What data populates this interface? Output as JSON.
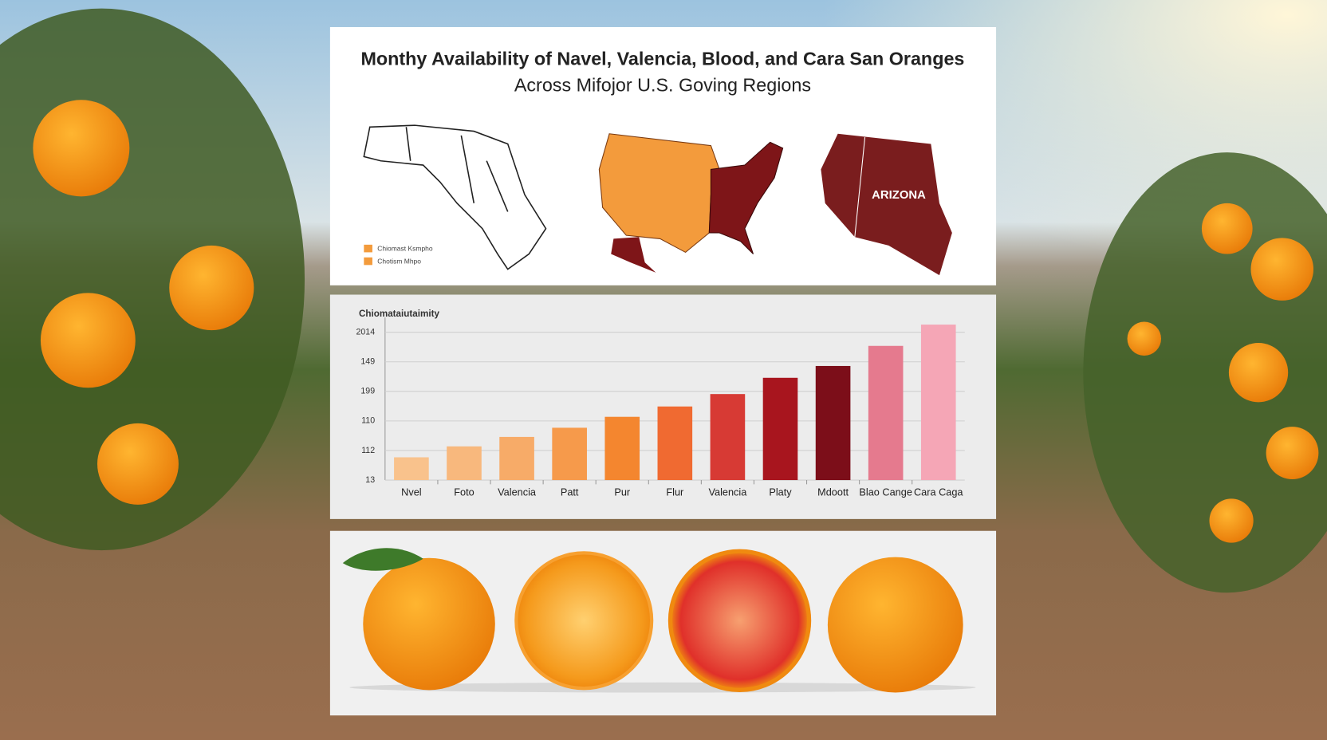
{
  "chart_data": {
    "type": "bar",
    "title": "Monthy Availability of Navel, Valencia, Blood, and Cara San Oranges",
    "subtitle": "Across Mifojor U.S. Goving Regions",
    "y_label": "Chiomataiutaimity",
    "categories": [
      "Nvel",
      "Foto",
      "Valencia",
      "Patt",
      "Pur",
      "Flur",
      "Valencia",
      "Platy",
      "Mdoott",
      "Blao Cange",
      "Cara Caga"
    ],
    "values": [
      0.77,
      1.14,
      1.46,
      1.77,
      2.14,
      2.49,
      2.91,
      3.46,
      3.86,
      4.54,
      5.26
    ],
    "colors": [
      "#f9c28c",
      "#f8b87d",
      "#f7ab68",
      "#f69a4b",
      "#f4862f",
      "#f06a31",
      "#d73a34",
      "#a8151e",
      "#7c0e19",
      "#e57a8e",
      "#f5a6b6"
    ],
    "ylim": [
      0,
      5.5
    ],
    "yticks": [
      {
        "value": 0,
        "label": "13"
      },
      {
        "value": 1,
        "label": "112"
      },
      {
        "value": 2,
        "label": "110"
      },
      {
        "value": 3,
        "label": "199"
      },
      {
        "value": 4,
        "label": "149"
      },
      {
        "value": 5,
        "label": "2014"
      }
    ],
    "grid": true
  },
  "maps": {
    "legend": [
      "Chiomast Ksmpho",
      "Chotism Mhpo"
    ],
    "state_label": "ARIZONA"
  }
}
